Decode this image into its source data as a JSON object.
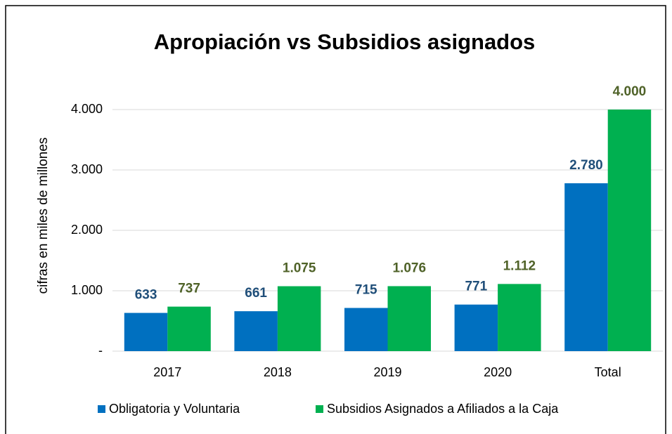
{
  "chart_data": {
    "type": "bar",
    "title": "Apropiación vs Subsidios asignados",
    "y_label": "cifras en miles de millones",
    "categories": [
      "2017",
      "2018",
      "2019",
      "2020",
      "Total"
    ],
    "series": [
      {
        "name": "Obligatoria y Voluntaria",
        "color": "#0070c0",
        "label_color": "#1f4e79",
        "values": [
          633,
          661,
          715,
          771,
          2780
        ],
        "value_labels": [
          "633",
          "661",
          "715",
          "771",
          "2.780"
        ]
      },
      {
        "name": "Subsidios Asignados a Afiliados a la Caja",
        "color": "#00b050",
        "label_color": "#4f6228",
        "values": [
          737,
          1075,
          1076,
          1112,
          4000
        ],
        "value_labels": [
          "737",
          "1.075",
          "1.076",
          "1.112",
          "4.000"
        ]
      }
    ],
    "ylim": [
      0,
      4000
    ],
    "yticks": [
      {
        "value": 0,
        "label": "-"
      },
      {
        "value": 1000,
        "label": "1.000"
      },
      {
        "value": 2000,
        "label": "2.000"
      },
      {
        "value": 3000,
        "label": "3.000"
      },
      {
        "value": 4000,
        "label": "4.000"
      }
    ],
    "grid": true,
    "legend": "bottom"
  }
}
